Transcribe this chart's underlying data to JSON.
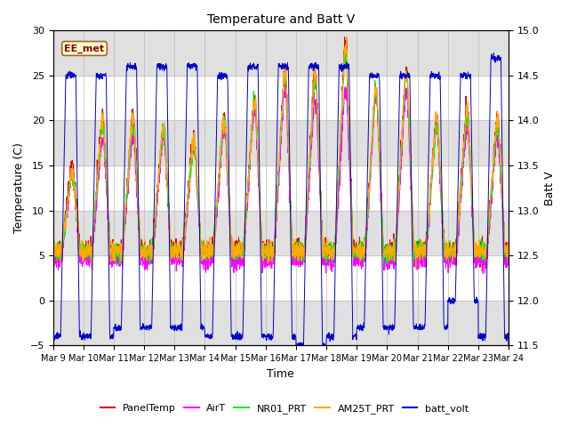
{
  "title": "Temperature and Batt V",
  "xlabel": "Time",
  "ylabel_left": "Temperature (C)",
  "ylabel_right": "Batt V",
  "annotation": "EE_met",
  "ylim_left": [
    -5,
    30
  ],
  "ylim_right": [
    11.5,
    15.0
  ],
  "xtick_labels": [
    "Mar 9",
    "Mar 10",
    "Mar 11",
    "Mar 12",
    "Mar 13",
    "Mar 14",
    "Mar 15",
    "Mar 16",
    "Mar 17",
    "Mar 18",
    "Mar 19",
    "Mar 20",
    "Mar 21",
    "Mar 22",
    "Mar 23",
    "Mar 24"
  ],
  "colors": {
    "PanelTemp": "#dd0000",
    "AirT": "#ff00ff",
    "NR01_PRT": "#00ee00",
    "AM25T_PRT": "#ffaa00",
    "batt_volt": "#0000cc"
  },
  "bg_color": "#ffffff",
  "grid_color": "#cccccc",
  "shading_color": "#e0e0e0",
  "n_days": 15,
  "pts_per_day": 144,
  "annotation_bbox_facecolor": "#ffffcc",
  "annotation_bbox_edgecolor": "#996633",
  "annotation_text_color": "#880000"
}
